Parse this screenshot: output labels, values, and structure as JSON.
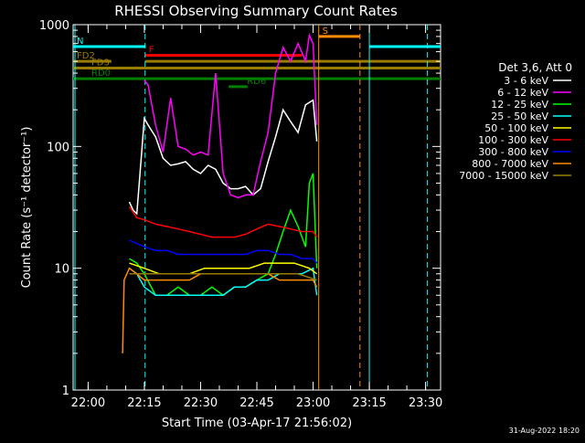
{
  "chart_data": {
    "type": "line",
    "title": "RHESSI Observing Summary Count Rates",
    "xlabel": "Start Time (03-Apr-17 21:56:02)",
    "ylabel": "Count Rate (s⁻¹ detector⁻¹)",
    "yscale": "log",
    "ylim": [
      1,
      1000
    ],
    "xlim_minutes_after_start": [
      0,
      98
    ],
    "x_tick_labels": [
      "22:00",
      "22:15",
      "22:30",
      "22:45",
      "23:00",
      "23:15",
      "23:30"
    ],
    "x_tick_minutes": [
      4,
      19,
      34,
      49,
      64,
      79,
      94
    ],
    "y_tick_labels": [
      "1",
      "10",
      "100",
      "1000"
    ],
    "y_tick_values": [
      1,
      10,
      100,
      1000
    ],
    "legend_title": "Det 3,6, Att 0",
    "legend_position": "right",
    "footer_date": "31-Aug-2022 18:20",
    "series": [
      {
        "name": "3 - 6 keV",
        "color": "#ffffff",
        "x": [
          15,
          16,
          17,
          19,
          20,
          22,
          24,
          26,
          28,
          30,
          32,
          34,
          36,
          38,
          40,
          42,
          44,
          46,
          48,
          50,
          52,
          54,
          56,
          58,
          60,
          62,
          64,
          65
        ],
        "y": [
          35,
          30,
          28,
          170,
          150,
          120,
          80,
          70,
          72,
          75,
          65,
          60,
          70,
          65,
          50,
          45,
          45,
          47,
          40,
          45,
          75,
          120,
          200,
          160,
          130,
          220,
          240,
          110
        ]
      },
      {
        "name": "6 - 12 keV",
        "color": "#ff00ff",
        "x": [
          19,
          20,
          22,
          24,
          26,
          28,
          30,
          32,
          34,
          36,
          38,
          40,
          42,
          44,
          46,
          48,
          50,
          52,
          54,
          56,
          58,
          60,
          62,
          63,
          64,
          65
        ],
        "y": [
          350,
          320,
          150,
          90,
          250,
          100,
          95,
          85,
          90,
          85,
          400,
          60,
          40,
          38,
          40,
          40,
          75,
          130,
          400,
          650,
          500,
          700,
          500,
          820,
          700,
          150
        ]
      },
      {
        "name": "12 - 25 keV",
        "color": "#00ff00",
        "x": [
          15,
          17,
          19,
          22,
          25,
          28,
          31,
          34,
          37,
          40,
          43,
          46,
          49,
          52,
          54,
          56,
          58,
          60,
          62,
          63,
          64,
          65
        ],
        "y": [
          12,
          11,
          9,
          6,
          6,
          7,
          6,
          6,
          7,
          6,
          7,
          7,
          8,
          9,
          13,
          20,
          30,
          22,
          15,
          50,
          60,
          10
        ]
      },
      {
        "name": "25 - 50 keV",
        "color": "#00ffff",
        "x": [
          15,
          17,
          19,
          22,
          25,
          28,
          31,
          34,
          37,
          40,
          43,
          46,
          49,
          52,
          55,
          58,
          61,
          64,
          65
        ],
        "y": [
          10,
          9,
          7,
          6,
          6,
          6,
          6,
          6,
          6,
          6,
          7,
          7,
          8,
          8,
          9,
          9,
          9,
          10,
          6
        ]
      },
      {
        "name": "50 - 100 keV",
        "color": "#ffff00",
        "x": [
          15,
          19,
          23,
          27,
          31,
          35,
          39,
          43,
          47,
          51,
          55,
          59,
          63,
          65
        ],
        "y": [
          11,
          10,
          9,
          9,
          9,
          10,
          10,
          10,
          10,
          11,
          11,
          11,
          10,
          9
        ]
      },
      {
        "name": "100 - 300 keV",
        "color": "#ff0000",
        "x": [
          15,
          17,
          19,
          22,
          25,
          28,
          31,
          34,
          37,
          40,
          43,
          46,
          49,
          52,
          55,
          58,
          61,
          64,
          65
        ],
        "y": [
          32,
          26,
          25,
          23,
          22,
          21,
          20,
          19,
          18,
          18,
          18,
          19,
          21,
          23,
          22,
          21,
          20,
          20,
          18
        ]
      },
      {
        "name": "300 - 800 keV",
        "color": "#0000ff",
        "x": [
          15,
          17,
          19,
          22,
          25,
          28,
          31,
          34,
          37,
          40,
          43,
          46,
          49,
          52,
          55,
          58,
          61,
          64,
          65
        ],
        "y": [
          17,
          16,
          15,
          14,
          14,
          13,
          13,
          13,
          13,
          13,
          13,
          13,
          14,
          14,
          13,
          13,
          12,
          12,
          11
        ]
      },
      {
        "name": "800 - 7000 keV",
        "color": "#ff8c00",
        "x": [
          13.2,
          13.6,
          15,
          17,
          19,
          22,
          25,
          28,
          31,
          34,
          37,
          40,
          43,
          46,
          49,
          52,
          55,
          58,
          61,
          64,
          65
        ],
        "y": [
          2,
          8,
          10,
          9,
          8,
          8,
          8,
          8,
          8,
          9,
          9,
          9,
          9,
          9,
          9,
          9,
          8,
          8,
          8,
          8,
          7
        ]
      },
      {
        "name": "7000 - 15000 keV",
        "color": "#9a7d00",
        "x": [
          15,
          20,
          25,
          30,
          35,
          40,
          45,
          50,
          55,
          60,
          65
        ],
        "y": [
          9,
          9,
          9,
          9,
          9,
          9,
          9,
          9,
          9,
          9,
          8
        ]
      }
    ],
    "flags": [
      {
        "label": "N",
        "color": "#00ffff",
        "y": 660,
        "segments": [
          [
            0,
            19.2
          ],
          [
            79,
            98
          ]
        ]
      },
      {
        "label": "F",
        "color": "#ff0000",
        "y": 560,
        "segments": [
          [
            19.2,
            61
          ]
        ]
      },
      {
        "label": "FD2",
        "color": "#9a7d00",
        "y": 500,
        "segments": [
          [
            0,
            10.2
          ],
          [
            19.2,
            98
          ]
        ]
      },
      {
        "label": "FD3",
        "color": "#9a7d00",
        "y": 440,
        "segments": [
          [
            0,
            98
          ]
        ]
      },
      {
        "label": "RD0",
        "color": "#008000",
        "y": 360,
        "segments": [
          [
            0,
            98
          ]
        ]
      },
      {
        "label": "RD6",
        "color": "#008000",
        "y": 310,
        "segments": [
          [
            41.5,
            46.5
          ]
        ]
      },
      {
        "label": "S",
        "color": "#ff8c00",
        "y": 800,
        "segments": [
          [
            65.5,
            76.5
          ]
        ]
      }
    ],
    "vertical_lines": [
      {
        "x": 19.2,
        "color": "#00ffff",
        "style": "dashed"
      },
      {
        "x": 0.5,
        "color": "#00ffff",
        "style": "solid"
      },
      {
        "x": 65.5,
        "color": "#ff8c00",
        "style": "solid"
      },
      {
        "x": 76.5,
        "color": "#ff8c00",
        "style": "dashed"
      },
      {
        "x": 79,
        "color": "#00ffff",
        "style": "solid"
      },
      {
        "x": 94.5,
        "color": "#00ffff",
        "style": "dashed"
      }
    ]
  }
}
